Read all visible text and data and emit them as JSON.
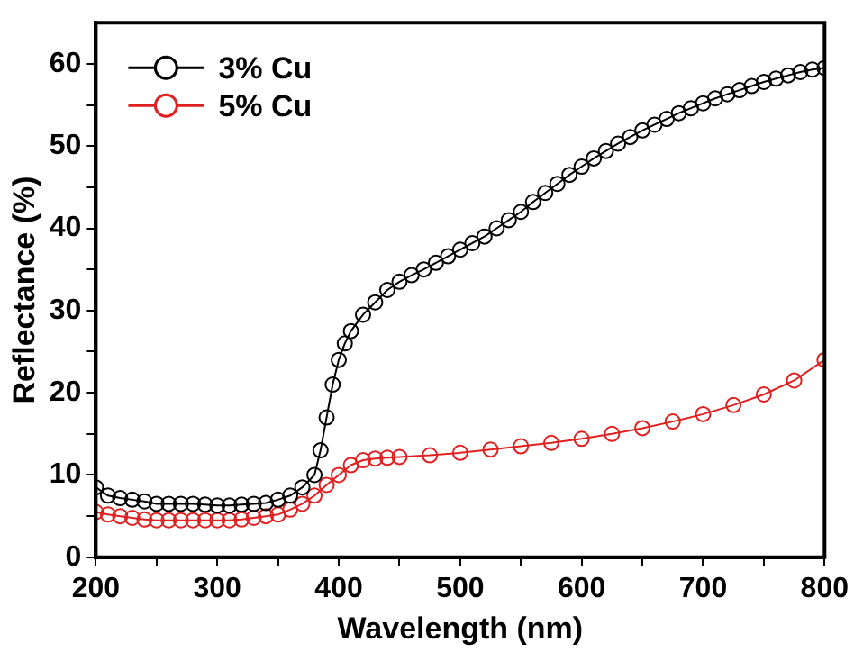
{
  "chart_data": {
    "type": "line",
    "xlabel": "Wavelength (nm)",
    "ylabel": "Reflectance (%)",
    "xlim": [
      200,
      800
    ],
    "xticks": [
      200,
      {
        "value": 250,
        "label": null
      },
      300,
      {
        "value": 350,
        "label": null
      },
      400,
      {
        "value": 450,
        "label": null
      },
      500,
      {
        "value": 550,
        "label": null
      },
      600,
      {
        "value": 650,
        "label": null
      },
      700,
      {
        "value": 750,
        "label": null
      },
      800
    ],
    "ylim": [
      0,
      65
    ],
    "yticks": [
      0,
      {
        "value": 5,
        "label": null
      },
      10,
      {
        "value": 15,
        "label": null
      },
      20,
      {
        "value": 25,
        "label": null
      },
      30,
      {
        "value": 35,
        "label": null
      },
      40,
      {
        "value": 45,
        "label": null
      },
      50,
      {
        "value": 55,
        "label": null
      },
      60
    ],
    "grid": false,
    "legend": "top left",
    "marker": "circle",
    "line_style": "solid",
    "series": [
      {
        "name": "3% Cu",
        "color": "#000000",
        "x": [
          200,
          210,
          220,
          230,
          240,
          250,
          260,
          270,
          280,
          290,
          300,
          310,
          320,
          330,
          340,
          350,
          360,
          370,
          380,
          385,
          390,
          395,
          400,
          405,
          410,
          420,
          430,
          440,
          450,
          460,
          470,
          480,
          490,
          500,
          510,
          520,
          530,
          540,
          550,
          560,
          570,
          580,
          590,
          600,
          610,
          620,
          630,
          640,
          650,
          660,
          670,
          680,
          690,
          700,
          710,
          720,
          730,
          740,
          750,
          760,
          770,
          780,
          790,
          800
        ],
        "values": [
          8.5,
          7.5,
          7.2,
          7,
          6.8,
          6.5,
          6.5,
          6.5,
          6.5,
          6.4,
          6.3,
          6.3,
          6.4,
          6.5,
          6.6,
          7,
          7.5,
          8.5,
          10,
          13,
          17,
          21,
          24,
          26,
          27.5,
          29.5,
          31,
          32.5,
          33.5,
          34.3,
          35,
          35.8,
          36.6,
          37.4,
          38.2,
          39,
          40,
          41,
          42,
          43.2,
          44.3,
          45.4,
          46.5,
          47.5,
          48.5,
          49.4,
          50.3,
          51.1,
          51.9,
          52.6,
          53.3,
          54,
          54.6,
          55.2,
          55.8,
          56.3,
          56.8,
          57.3,
          57.8,
          58.2,
          58.6,
          59,
          59.3,
          59.5
        ]
      },
      {
        "name": "5% Cu",
        "color": "#e02020",
        "x": [
          200,
          210,
          220,
          230,
          240,
          250,
          260,
          270,
          280,
          290,
          300,
          310,
          320,
          330,
          340,
          350,
          360,
          370,
          380,
          390,
          400,
          410,
          420,
          430,
          440,
          450,
          475,
          500,
          525,
          550,
          575,
          600,
          625,
          650,
          675,
          700,
          725,
          750,
          775,
          800
        ],
        "values": [
          5.5,
          5.2,
          5,
          4.8,
          4.6,
          4.5,
          4.5,
          4.5,
          4.5,
          4.5,
          4.5,
          4.5,
          4.6,
          4.8,
          5,
          5.2,
          5.8,
          6.5,
          7.5,
          8.8,
          10,
          11.2,
          11.8,
          12,
          12.1,
          12.2,
          12.4,
          12.7,
          13.1,
          13.5,
          13.9,
          14.4,
          15,
          15.7,
          16.5,
          17.4,
          18.5,
          19.8,
          21.5,
          24
        ]
      }
    ]
  }
}
